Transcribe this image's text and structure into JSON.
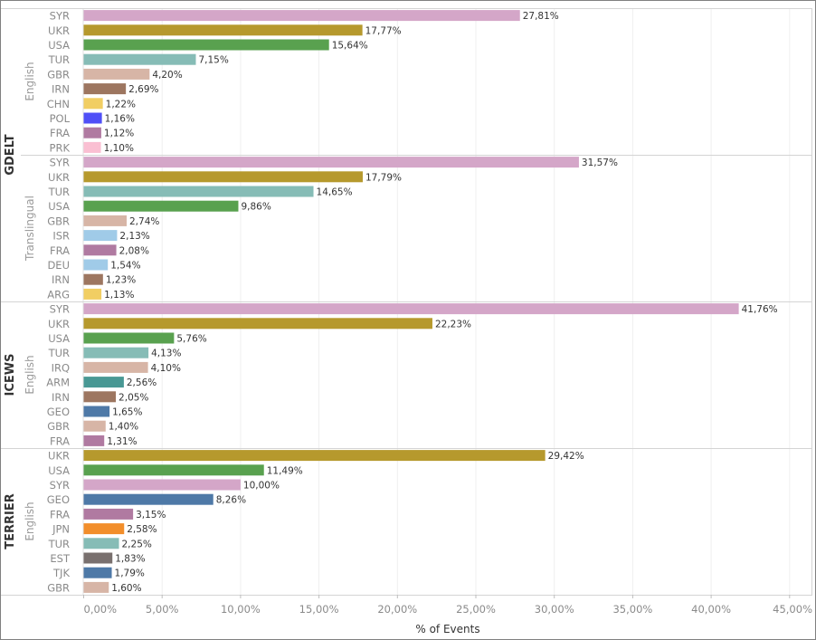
{
  "chart_data": {
    "type": "bar",
    "orientation": "horizontal",
    "xlabel": "% of Events",
    "xlim": [
      0,
      45
    ],
    "xticks": [
      "0,00%",
      "5,00%",
      "10,00%",
      "15,00%",
      "20,00%",
      "25,00%",
      "30,00%",
      "35,00%",
      "40,00%",
      "45,00%"
    ],
    "xtick_values": [
      0,
      5,
      10,
      15,
      20,
      25,
      30,
      35,
      40,
      45
    ],
    "grid": true,
    "panels": [
      {
        "source": "GDELT",
        "language": "English",
        "categories": [
          "SYR",
          "UKR",
          "USA",
          "TUR",
          "GBR",
          "IRN",
          "CHN",
          "POL",
          "FRA",
          "PRK"
        ],
        "values": [
          27.81,
          17.77,
          15.64,
          7.15,
          4.2,
          2.69,
          1.22,
          1.16,
          1.12,
          1.1
        ],
        "labels": [
          "27,81%",
          "17,77%",
          "15,64%",
          "7,15%",
          "4,20%",
          "2,69%",
          "1,22%",
          "1,16%",
          "1,12%",
          "1,10%"
        ]
      },
      {
        "source": "GDELT",
        "language": "Translingual",
        "categories": [
          "SYR",
          "UKR",
          "TUR",
          "USA",
          "GBR",
          "ISR",
          "FRA",
          "DEU",
          "IRN",
          "ARG"
        ],
        "values": [
          31.57,
          17.79,
          14.65,
          9.86,
          2.74,
          2.13,
          2.08,
          1.54,
          1.23,
          1.13
        ],
        "labels": [
          "31,57%",
          "17,79%",
          "14,65%",
          "9,86%",
          "2,74%",
          "2,13%",
          "2,08%",
          "1,54%",
          "1,23%",
          "1,13%"
        ]
      },
      {
        "source": "ICEWS",
        "language": "English",
        "categories": [
          "SYR",
          "UKR",
          "USA",
          "TUR",
          "IRQ",
          "ARM",
          "IRN",
          "GEO",
          "GBR",
          "FRA"
        ],
        "values": [
          41.76,
          22.23,
          5.76,
          4.13,
          4.1,
          2.56,
          2.05,
          1.65,
          1.4,
          1.31
        ],
        "labels": [
          "41,76%",
          "22,23%",
          "5,76%",
          "4,13%",
          "4,10%",
          "2,56%",
          "2,05%",
          "1,65%",
          "1,40%",
          "1,31%"
        ]
      },
      {
        "source": "TERRIER",
        "language": "English",
        "categories": [
          "UKR",
          "USA",
          "SYR",
          "GEO",
          "FRA",
          "JPN",
          "TUR",
          "EST",
          "TJK",
          "GBR"
        ],
        "values": [
          29.42,
          11.49,
          10.0,
          8.26,
          3.15,
          2.58,
          2.25,
          1.83,
          1.79,
          1.6
        ],
        "labels": [
          "29,42%",
          "11,49%",
          "10,00%",
          "8,26%",
          "3,15%",
          "2,58%",
          "2,25%",
          "1,83%",
          "1,79%",
          "1,60%"
        ]
      }
    ],
    "country_colors": {
      "SYR": "#d4a6c8",
      "UKR": "#b6992d",
      "USA": "#59a14f",
      "TUR": "#86bcb6",
      "GBR": "#d7b5a6",
      "IRN": "#9d7660",
      "CHN": "#f1ce63",
      "POL": "#4f4ff7",
      "FRA": "#b07aa1",
      "PRK": "#fabfd2",
      "ISR": "#a0cbe8",
      "DEU": "#a0cbe8",
      "ARG": "#f1ce63",
      "IRQ": "#d7b5a6",
      "ARM": "#499894",
      "GEO": "#4e79a7",
      "JPN": "#f28e2b",
      "EST": "#79706e",
      "TJK": "#4e79a7"
    }
  }
}
